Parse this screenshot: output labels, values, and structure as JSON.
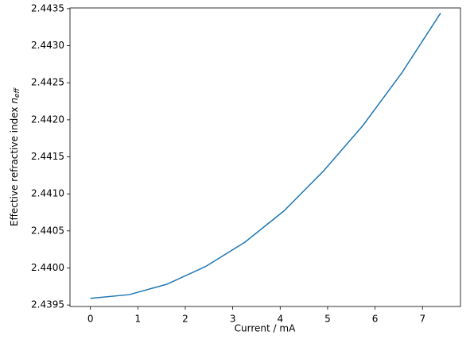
{
  "chart_data": {
    "type": "line",
    "xlabel": "Current / mA",
    "ylabel": "Effective refractive index",
    "ylabel_symbol": "n",
    "ylabel_subscript": "eff",
    "x": [
      0,
      0.82,
      1.61,
      2.43,
      3.26,
      4.08,
      4.9,
      5.74,
      6.56,
      7.38
    ],
    "series": [
      {
        "name": "n_eff",
        "color": "#1f77b4",
        "values": [
          2.43959,
          2.43964,
          2.43978,
          2.44002,
          2.44035,
          2.44077,
          2.4413,
          2.44192,
          2.44263,
          2.44344
        ]
      }
    ],
    "xlim": [
      -0.43,
      7.8
    ],
    "ylim": [
      2.43948,
      2.44351
    ],
    "xticks": [
      0,
      1,
      2,
      3,
      4,
      5,
      6,
      7
    ],
    "yticks": [
      2.4395,
      {
        "value": 2.44,
        "label": "2.4400"
      },
      2.4405,
      {
        "value": 2.441,
        "label": "2.4410"
      },
      2.4415,
      {
        "value": 2.442,
        "label": "2.4420"
      },
      2.4425,
      {
        "value": 2.443,
        "label": "2.4430"
      },
      2.4435
    ]
  }
}
